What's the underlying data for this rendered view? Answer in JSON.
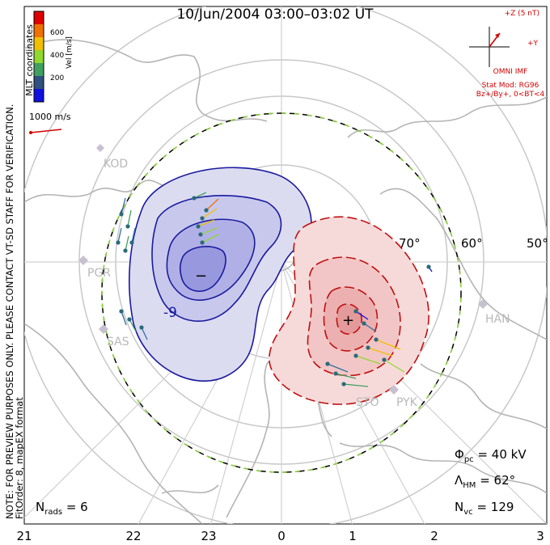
{
  "title": "10/Jun/2004 03:00–03:02 UT",
  "notice": "NOTE: FOR PREVIEW PURPOSES ONLY. PLEASE CONTACT VT-SD STAFF FOR VERIFICATION.",
  "fit_info": "FitOrder: 8, mapEX format",
  "coord_system": "MLT coordinates",
  "colorbar": {
    "label": "Vel [m/s]",
    "ticks": [
      "600",
      "400",
      "200"
    ],
    "colors": [
      "#e00000",
      "#f07000",
      "#f0c000",
      "#90d830",
      "#40a060",
      "#305080",
      "#1010e0"
    ]
  },
  "vector_scale": "1000 m/s",
  "imf": {
    "axis_z": "+Z (5 nT)",
    "axis_y": "+Y",
    "source": "OMNI IMF",
    "model": "Stat Mod: RG96",
    "condition": "Bz+/By+, 0<BT<4"
  },
  "latitude_labels": [
    "70°",
    "60°",
    "50°"
  ],
  "mlt_labels": [
    "21",
    "22",
    "23",
    "0",
    "1",
    "2",
    "3"
  ],
  "stations": [
    "KOD",
    "PGR",
    "SAS",
    "HAN",
    "PYK",
    "STO"
  ],
  "stats": {
    "phi_pc_label": "Φ",
    "phi_pc_sub": "pc",
    "phi_pc_value": "= 40 kV",
    "lambda_hm_label": "Λ",
    "lambda_hm_sub": "HM",
    "lambda_hm_value": "= 62°",
    "nvc_label": "N",
    "nvc_sub": "vc",
    "nvc_value": "= 129",
    "nrads_label": "N",
    "nrads_sub": "rads",
    "nrads_value": "= 6"
  },
  "cells": {
    "negative_marker": "−",
    "positive_marker": "+",
    "contour_label": "-9",
    "negative_color": "#1a1aa0",
    "positive_color": "#d01010"
  }
}
